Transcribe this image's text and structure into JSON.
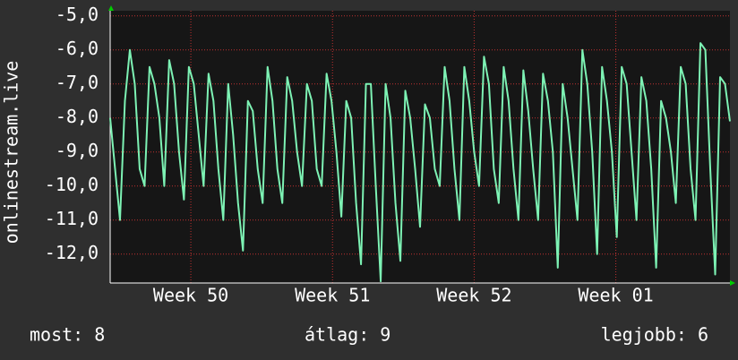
{
  "chart_data": {
    "type": "line",
    "y_label": "onlinestream.live",
    "values": [
      -8.0,
      -9.5,
      -11.0,
      -7.5,
      -6.0,
      -7.0,
      -9.5,
      -10.0,
      -6.5,
      -7.0,
      -8.0,
      -10.0,
      -6.3,
      -7.0,
      -9.0,
      -10.4,
      -6.5,
      -7.0,
      -8.5,
      -10.0,
      -6.7,
      -7.5,
      -9.5,
      -11.0,
      -7.0,
      -8.5,
      -10.5,
      -11.9,
      -7.5,
      -7.8,
      -9.5,
      -10.5,
      -6.5,
      -7.5,
      -9.5,
      -10.5,
      -6.8,
      -7.5,
      -9.0,
      -10.0,
      -7.0,
      -7.5,
      -9.5,
      -10.0,
      -6.7,
      -7.5,
      -9.0,
      -10.9,
      -7.5,
      -8.0,
      -10.5,
      -12.3,
      -7.0,
      -7.0,
      -10.0,
      -12.8,
      -7.0,
      -8.0,
      -10.5,
      -12.2,
      -7.2,
      -8.0,
      -9.5,
      -11.2,
      -7.6,
      -8.0,
      -9.5,
      -10.0,
      -6.5,
      -7.5,
      -9.5,
      -11.0,
      -6.5,
      -7.5,
      -9.0,
      -10.0,
      -6.2,
      -7.0,
      -9.5,
      -10.5,
      -6.5,
      -7.5,
      -9.5,
      -11.0,
      -6.6,
      -7.8,
      -9.5,
      -11.0,
      -6.7,
      -7.5,
      -9.0,
      -12.4,
      -7.0,
      -8.0,
      -9.5,
      -11.0,
      -6.0,
      -7.0,
      -9.0,
      -12.0,
      -6.5,
      -7.5,
      -9.0,
      -11.5,
      -6.5,
      -7.0,
      -9.0,
      -11.0,
      -6.8,
      -7.5,
      -9.5,
      -12.4,
      -7.5,
      -8.0,
      -9.0,
      -10.5,
      -6.5,
      -7.0,
      -9.5,
      -11.0,
      -5.8,
      -6.0,
      -9.5,
      -12.6,
      -6.8,
      -7.0,
      -8.1
    ],
    "color": "#7df2b4",
    "xlim": [
      0,
      126
    ],
    "xticks": [
      {
        "value": 16.4,
        "label": "Week 50"
      },
      {
        "value": 45.2,
        "label": "Week 51"
      },
      {
        "value": 74,
        "label": "Week 52"
      },
      {
        "value": 102.8,
        "label": "Week 01"
      }
    ],
    "ylim": [
      -12.85,
      -4.85
    ],
    "yticks": [
      {
        "value": -5,
        "label": "-5,0"
      },
      {
        "value": -6,
        "label": "-6,0"
      },
      {
        "value": -7,
        "label": "-7,0"
      },
      {
        "value": -8,
        "label": "-8,0"
      },
      {
        "value": -9,
        "label": "-9,0"
      },
      {
        "value": -10,
        "label": "-10,0"
      },
      {
        "value": -11,
        "label": "-11,0"
      },
      {
        "value": -12,
        "label": "-12,0"
      }
    ],
    "grid": true,
    "stats": [
      "most: 8",
      "átlag: 9",
      "legjobb: 6"
    ]
  }
}
